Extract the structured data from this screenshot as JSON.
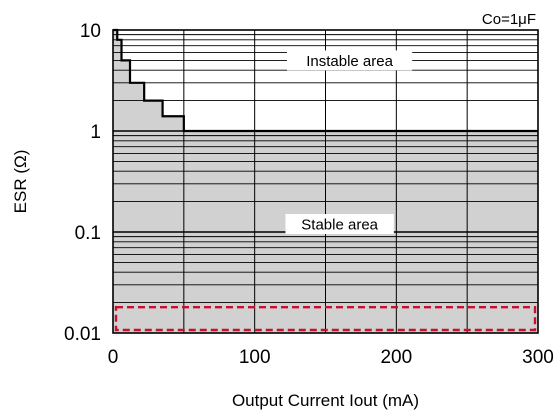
{
  "chart_data": {
    "type": "area",
    "xlabel": "Output Current Iout (mA)",
    "ylabel": "ESR (Ω)",
    "x_ticks": [
      0,
      100,
      200,
      300
    ],
    "y_ticks": [
      "0.01",
      "0.1",
      "1",
      "10"
    ],
    "xlim": [
      0,
      300
    ],
    "ylim": [
      0.01,
      10
    ],
    "y_scale": "log",
    "grid": true,
    "condition_label": "Co=1μF",
    "boundary": {
      "x": [
        0,
        3,
        3,
        6,
        6,
        12,
        12,
        22,
        22,
        35,
        35,
        50,
        50,
        300
      ],
      "y": [
        10,
        10,
        8,
        8,
        5,
        5,
        3,
        3,
        2,
        2,
        1.4,
        1.4,
        1,
        1
      ]
    },
    "annotations": [
      {
        "text": "Instable area",
        "x": 167,
        "y": 5
      },
      {
        "text": "Stable area",
        "x": 160,
        "y": 0.12
      }
    ],
    "highlight_region": {
      "x": [
        0,
        300
      ],
      "y": [
        0.01,
        0.018
      ],
      "color": "#c8102e"
    },
    "colors": {
      "stable_fill": "#d1d1d1",
      "line": "#000000"
    }
  }
}
